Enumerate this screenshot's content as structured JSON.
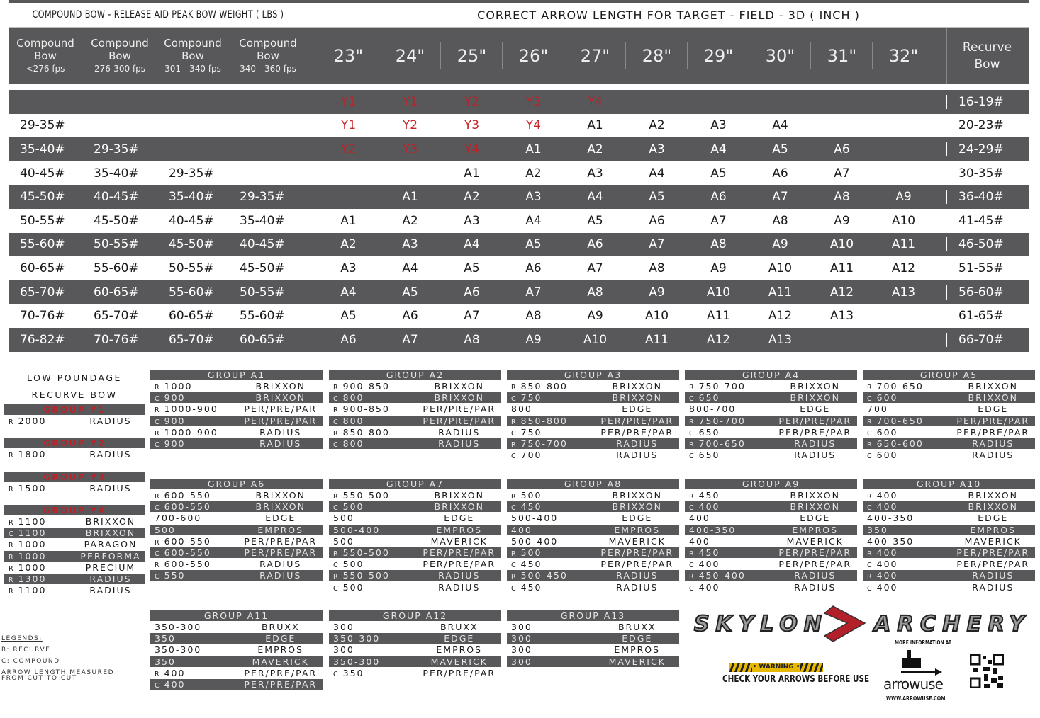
{
  "title_left": "COMPOUND BOW - RELEASE AID PEAK BOW WEIGHT ( LBS )",
  "title_right": "CORRECT ARROW LENGTH FOR TARGET - FIELD - 3D ( INCH )",
  "compound_headers": [
    [
      "Compound",
      "Bow",
      "<276 fps"
    ],
    [
      "Compound",
      "Bow",
      "276-300 fps"
    ],
    [
      "Compound",
      "Bow",
      "301 - 340 fps"
    ],
    [
      "Compound",
      "Bow",
      "340 - 360 fps"
    ]
  ],
  "lengths": [
    "23\"",
    "24\"",
    "25\"",
    "26\"",
    "27\"",
    "28\"",
    "29\"",
    "30\"",
    "31\"",
    "32\""
  ],
  "recurve_header": [
    "Recurve",
    "Bow"
  ],
  "colors": {
    "dark": "#58585a",
    "red": "#c8262c"
  },
  "rows": [
    {
      "compound": [
        "",
        "",
        "",
        ""
      ],
      "cells": [
        "Y1",
        "Y1",
        "Y2",
        "Y3",
        "Y4",
        "",
        "",
        "",
        "",
        ""
      ],
      "recurve": "16-19#"
    },
    {
      "compound": [
        "29-35#",
        "",
        "",
        ""
      ],
      "cells": [
        "Y1",
        "Y2",
        "Y3",
        "Y4",
        "A1",
        "A2",
        "A3",
        "A4",
        "",
        ""
      ],
      "recurve": "20-23#"
    },
    {
      "compound": [
        "35-40#",
        "29-35#",
        "",
        ""
      ],
      "cells": [
        "Y2",
        "Y3",
        "Y4",
        "A1",
        "A2",
        "A3",
        "A4",
        "A5",
        "A6",
        ""
      ],
      "recurve": "24-29#"
    },
    {
      "compound": [
        "40-45#",
        "35-40#",
        "29-35#",
        ""
      ],
      "cells": [
        "",
        "",
        "A1",
        "A2",
        "A3",
        "A4",
        "A5",
        "A6",
        "A7",
        ""
      ],
      "recurve": "30-35#"
    },
    {
      "compound": [
        "45-50#",
        "40-45#",
        "35-40#",
        "29-35#"
      ],
      "cells": [
        "",
        "A1",
        "A2",
        "A3",
        "A4",
        "A5",
        "A6",
        "A7",
        "A8",
        "A9"
      ],
      "recurve": "36-40#"
    },
    {
      "compound": [
        "50-55#",
        "45-50#",
        "40-45#",
        "35-40#"
      ],
      "cells": [
        "A1",
        "A2",
        "A3",
        "A4",
        "A5",
        "A6",
        "A7",
        "A8",
        "A9",
        "A10"
      ],
      "recurve": "41-45#"
    },
    {
      "compound": [
        "55-60#",
        "50-55#",
        "45-50#",
        "40-45#"
      ],
      "cells": [
        "A2",
        "A3",
        "A4",
        "A5",
        "A6",
        "A7",
        "A8",
        "A9",
        "A10",
        "A11"
      ],
      "recurve": "46-50#"
    },
    {
      "compound": [
        "60-65#",
        "55-60#",
        "50-55#",
        "45-50#"
      ],
      "cells": [
        "A3",
        "A4",
        "A5",
        "A6",
        "A7",
        "A8",
        "A9",
        "A10",
        "A11",
        "A12"
      ],
      "recurve": "51-55#"
    },
    {
      "compound": [
        "65-70#",
        "60-65#",
        "55-60#",
        "50-55#"
      ],
      "cells": [
        "A4",
        "A5",
        "A6",
        "A7",
        "A8",
        "A9",
        "A10",
        "A11",
        "A12",
        "A13"
      ],
      "recurve": "56-60#"
    },
    {
      "compound": [
        "70-76#",
        "65-70#",
        "60-65#",
        "55-60#"
      ],
      "cells": [
        "A5",
        "A6",
        "A7",
        "A8",
        "A9",
        "A10",
        "A11",
        "A12",
        "A13",
        ""
      ],
      "recurve": "61-65#"
    },
    {
      "compound": [
        "76-82#",
        "70-76#",
        "65-70#",
        "60-65#"
      ],
      "cells": [
        "A6",
        "A7",
        "A8",
        "A9",
        "A10",
        "A11",
        "A12",
        "A13",
        "",
        ""
      ],
      "recurve": "66-70#"
    }
  ],
  "low_poundage": [
    "LOW POUNDAGE",
    "RECURVE BOW"
  ],
  "y_groups": [
    {
      "title": "GROUP Y1",
      "rows": [
        [
          "R",
          "2000",
          "RADIUS"
        ]
      ]
    },
    {
      "title": "GROUP Y2",
      "rows": [
        [
          "R",
          "1800",
          "RADIUS"
        ]
      ]
    },
    {
      "title": "GROUP Y3",
      "rows": [
        [
          "R",
          "1500",
          "RADIUS"
        ]
      ]
    },
    {
      "title": "GROUP Y4",
      "rows": [
        [
          "R",
          "1100",
          "BRIXXON"
        ],
        [
          "C",
          "1100",
          "BRIXXON"
        ],
        [
          "R",
          "1000",
          "PARAGON"
        ],
        [
          "R",
          "1000",
          "PERFORMA"
        ],
        [
          "R",
          "1000",
          "PRECIUM"
        ],
        [
          "R",
          "1300",
          "RADIUS"
        ],
        [
          "R",
          "1100",
          "RADIUS"
        ]
      ]
    }
  ],
  "a_groups": [
    {
      "title": "GROUP A1",
      "rows": [
        [
          "R",
          "1000",
          "BRIXXON"
        ],
        [
          "C",
          "900",
          "BRIXXON"
        ],
        [
          "R",
          "1000-900",
          "PER/PRE/PAR"
        ],
        [
          "C",
          "900",
          "PER/PRE/PAR"
        ],
        [
          "R",
          "1000-900",
          "RADIUS"
        ],
        [
          "C",
          "900",
          "RADIUS"
        ]
      ]
    },
    {
      "title": "GROUP A2",
      "rows": [
        [
          "R",
          "900-850",
          "BRIXXON"
        ],
        [
          "C",
          "800",
          "BRIXXON"
        ],
        [
          "R",
          "900-850",
          "PER/PRE/PAR"
        ],
        [
          "C",
          "800",
          "PER/PRE/PAR"
        ],
        [
          "R",
          "850-800",
          "RADIUS"
        ],
        [
          "C",
          "800",
          "RADIUS"
        ]
      ]
    },
    {
      "title": "GROUP A3",
      "rows": [
        [
          "R",
          "850-800",
          "BRIXXON"
        ],
        [
          "C",
          "750",
          "BRIXXON"
        ],
        [
          "",
          "800",
          "EDGE"
        ],
        [
          "R",
          "850-800",
          "PER/PRE/PAR"
        ],
        [
          "C",
          "750",
          "PER/PRE/PAR"
        ],
        [
          "R",
          "750-700",
          "RADIUS"
        ],
        [
          "C",
          "700",
          "RADIUS"
        ]
      ]
    },
    {
      "title": "GROUP A4",
      "rows": [
        [
          "R",
          "750-700",
          "BRIXXON"
        ],
        [
          "C",
          "650",
          "BRIXXON"
        ],
        [
          "",
          "800-700",
          "EDGE"
        ],
        [
          "R",
          "750-700",
          "PER/PRE/PAR"
        ],
        [
          "C",
          "650",
          "PER/PRE/PAR"
        ],
        [
          "R",
          "700-650",
          "RADIUS"
        ],
        [
          "C",
          "650",
          "RADIUS"
        ]
      ]
    },
    {
      "title": "GROUP A5",
      "rows": [
        [
          "R",
          "700-650",
          "BRIXXON"
        ],
        [
          "C",
          "600",
          "BRIXXON"
        ],
        [
          "",
          "700",
          "EDGE"
        ],
        [
          "R",
          "700-650",
          "PER/PRE/PAR"
        ],
        [
          "C",
          "600",
          "PER/PRE/PAR"
        ],
        [
          "R",
          "650-600",
          "RADIUS"
        ],
        [
          "C",
          "600",
          "RADIUS"
        ]
      ]
    },
    {
      "title": "GROUP A6",
      "rows": [
        [
          "R",
          "600-550",
          "BRIXXON"
        ],
        [
          "C",
          "600-550",
          "BRIXXON"
        ],
        [
          "",
          "700-600",
          "EDGE"
        ],
        [
          "",
          "500",
          "EMPROS"
        ],
        [
          "R",
          "600-550",
          "PER/PRE/PAR"
        ],
        [
          "C",
          "600-550",
          "PER/PRE/PAR"
        ],
        [
          "R",
          "600-550",
          "RADIUS"
        ],
        [
          "C",
          "550",
          "RADIUS"
        ]
      ]
    },
    {
      "title": "GROUP A7",
      "rows": [
        [
          "R",
          "550-500",
          "BRIXXON"
        ],
        [
          "C",
          "500",
          "BRIXXON"
        ],
        [
          "",
          "500",
          "EDGE"
        ],
        [
          "",
          "500-400",
          "EMPROS"
        ],
        [
          "",
          "500",
          "MAVERICK"
        ],
        [
          "R",
          "550-500",
          "PER/PRE/PAR"
        ],
        [
          "C",
          "500",
          "PER/PRE/PAR"
        ],
        [
          "R",
          "550-500",
          "RADIUS"
        ],
        [
          "C",
          "500",
          "RADIUS"
        ]
      ]
    },
    {
      "title": "GROUP A8",
      "rows": [
        [
          "R",
          "500",
          "BRIXXON"
        ],
        [
          "C",
          "450",
          "BRIXXON"
        ],
        [
          "",
          "500-400",
          "EDGE"
        ],
        [
          "",
          "400",
          "EMPROS"
        ],
        [
          "",
          "500-400",
          "MAVERICK"
        ],
        [
          "R",
          "500",
          "PER/PRE/PAR"
        ],
        [
          "C",
          "450",
          "PER/PRE/PAR"
        ],
        [
          "R",
          "500-450",
          "RADIUS"
        ],
        [
          "C",
          "450",
          "RADIUS"
        ]
      ]
    },
    {
      "title": "GROUP A9",
      "rows": [
        [
          "R",
          "450",
          "BRIXXON"
        ],
        [
          "C",
          "400",
          "BRIXXON"
        ],
        [
          "",
          "400",
          "EDGE"
        ],
        [
          "",
          "400-350",
          "EMPROS"
        ],
        [
          "",
          "400",
          "MAVERICK"
        ],
        [
          "R",
          "450",
          "PER/PRE/PAR"
        ],
        [
          "C",
          "400",
          "PER/PRE/PAR"
        ],
        [
          "R",
          "450-400",
          "RADIUS"
        ],
        [
          "C",
          "400",
          "RADIUS"
        ]
      ]
    },
    {
      "title": "GROUP A10",
      "rows": [
        [
          "R",
          "400",
          "BRIXXON"
        ],
        [
          "C",
          "400",
          "BRIXXON"
        ],
        [
          "",
          "400-350",
          "EDGE"
        ],
        [
          "",
          "350",
          "EMPROS"
        ],
        [
          "",
          "400-350",
          "MAVERICK"
        ],
        [
          "R",
          "400",
          "PER/PRE/PAR"
        ],
        [
          "C",
          "400",
          "PER/PRE/PAR"
        ],
        [
          "R",
          "400",
          "RADIUS"
        ],
        [
          "C",
          "400",
          "RADIUS"
        ]
      ]
    },
    {
      "title": "GROUP A11",
      "rows": [
        [
          "",
          "350-300",
          "BRUXX"
        ],
        [
          "",
          "350",
          "EDGE"
        ],
        [
          "",
          "350-300",
          "EMPROS"
        ],
        [
          "",
          "350",
          "MAVERICK"
        ],
        [
          "R",
          "400",
          "PER/PRE/PAR"
        ],
        [
          "C",
          "400",
          "PER/PRE/PAR"
        ]
      ]
    },
    {
      "title": "GROUP A12",
      "rows": [
        [
          "",
          "300",
          "BRUXX"
        ],
        [
          "",
          "350-300",
          "EDGE"
        ],
        [
          "",
          "300",
          "EMPROS"
        ],
        [
          "",
          "350-300",
          "MAVERICK"
        ],
        [
          "C",
          "350",
          "PER/PRE/PAR"
        ]
      ]
    },
    {
      "title": "GROUP A13",
      "rows": [
        [
          "",
          "300",
          "BRUXX"
        ],
        [
          "",
          "300",
          "EDGE"
        ],
        [
          "",
          "300",
          "EMPROS"
        ],
        [
          "",
          "300",
          "MAVERICK"
        ]
      ]
    }
  ],
  "legend": {
    "heading": "LEGENDS:",
    "r": "R: RECURVE",
    "c": "C: COMPOUND",
    "note1": "ARROW LENGTH MEASURED",
    "note2": "FROM CUT TO CUT"
  },
  "logo": {
    "left": "SKYLON",
    "right": "ARCHERY"
  },
  "warning": {
    "badge": "• WARNING •",
    "text": "CHECK YOUR ARROWS BEFORE USE"
  },
  "arrowuse": {
    "more": "MORE INFORMATION AT",
    "brand": "arrowuse",
    "url": "WWW.ARROWUSE.COM"
  }
}
